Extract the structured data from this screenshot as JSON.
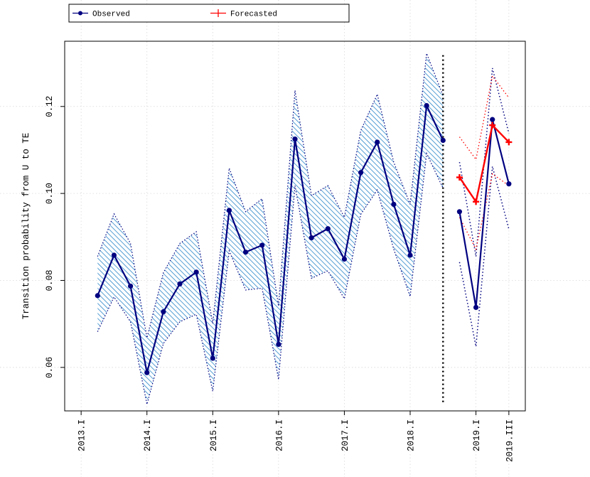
{
  "chart_data": {
    "type": "line",
    "ylabel": "Transition probability from U to TE",
    "xlabel": "",
    "ylim": [
      0.05,
      0.135
    ],
    "yticks": [
      0.06,
      0.08,
      0.1,
      0.12
    ],
    "ytick_labels": [
      "0.06",
      "0.08",
      "0.10",
      "0.12"
    ],
    "xticks": [
      {
        "t": 2013.0,
        "label": "2013.I"
      },
      {
        "t": 2014.0,
        "label": "2014.I"
      },
      {
        "t": 2015.0,
        "label": "2015.I"
      },
      {
        "t": 2016.0,
        "label": "2016.I"
      },
      {
        "t": 2017.0,
        "label": "2017.I"
      },
      {
        "t": 2018.0,
        "label": "2018.I"
      },
      {
        "t": 2019.0,
        "label": "2019.I"
      },
      {
        "t": 2019.5,
        "label": "2019.III"
      }
    ],
    "xlim": [
      2012.75,
      2019.75
    ],
    "legend": {
      "position": "top",
      "entries": [
        {
          "name": "Observed",
          "color": "#000080",
          "marker": "dot"
        },
        {
          "name": "Forecasted",
          "color": "#ff0000",
          "marker": "plus"
        }
      ]
    },
    "observed_insample": {
      "t": [
        2013.25,
        2013.5,
        2013.75,
        2014.0,
        2014.25,
        2014.5,
        2014.75,
        2015.0,
        2015.25,
        2015.5,
        2015.75,
        2016.0,
        2016.25,
        2016.5,
        2016.75,
        2017.0,
        2017.25,
        2017.5,
        2017.75,
        2018.0,
        2018.25,
        2018.5
      ],
      "values": [
        0.0765,
        0.0858,
        0.0787,
        0.0588,
        0.0728,
        0.0792,
        0.0819,
        0.0621,
        0.0961,
        0.0865,
        0.0881,
        0.0653,
        0.1125,
        0.0898,
        0.0919,
        0.0849,
        0.1048,
        0.1118,
        0.0975,
        0.0858,
        0.1202,
        0.1122
      ],
      "upper": [
        0.0855,
        0.0953,
        0.0885,
        0.0668,
        0.0818,
        0.0885,
        0.0912,
        0.0701,
        0.1058,
        0.0958,
        0.0988,
        0.0741,
        0.1237,
        0.0995,
        0.1018,
        0.0945,
        0.1145,
        0.1228,
        0.1072,
        0.0975,
        0.1322,
        0.1225
      ],
      "lower": [
        0.0682,
        0.0762,
        0.0705,
        0.0515,
        0.0655,
        0.0705,
        0.0722,
        0.0545,
        0.0868,
        0.0778,
        0.0782,
        0.0572,
        0.1018,
        0.0805,
        0.0822,
        0.0758,
        0.0952,
        0.1008,
        0.0872,
        0.0763,
        0.1092,
        0.1012
      ]
    },
    "forecast_cutoff_t": 2018.5,
    "observed_outsample": {
      "t": [
        2018.75,
        2019.0,
        2019.25,
        2019.5
      ],
      "values": [
        0.0958,
        0.0738,
        0.117,
        0.1022
      ],
      "upper": [
        0.1072,
        0.0855,
        0.1288,
        0.1138
      ],
      "lower": [
        0.0842,
        0.0648,
        0.1062,
        0.0918
      ]
    },
    "forecasted": {
      "t": [
        2018.75,
        2019.0,
        2019.25,
        2019.5
      ],
      "values": [
        0.1037,
        0.0981,
        0.1157,
        0.1118
      ],
      "upper": [
        0.113,
        0.1078,
        0.127,
        0.122
      ],
      "lower": [
        0.0945,
        0.0872,
        0.1045,
        0.1018
      ]
    },
    "colors": {
      "observed": "#000080",
      "forecasted": "#ff0000",
      "band": "#1f77c0",
      "grid": "#d8d8d8"
    }
  }
}
